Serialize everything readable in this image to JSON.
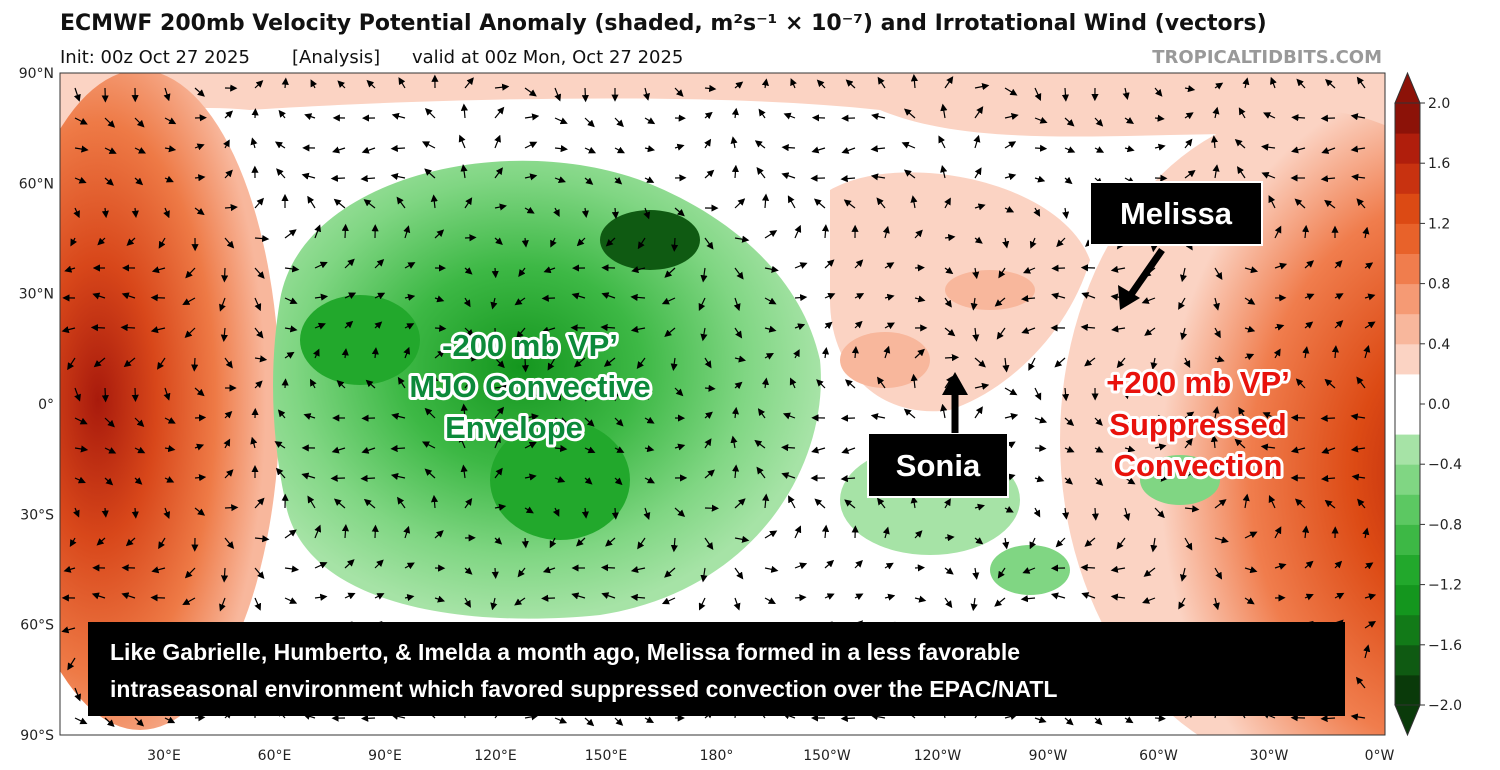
{
  "header": {
    "title": "ECMWF 200mb Velocity Potential Anomaly (shaded, m²s⁻¹ × 10⁻⁷) and Irrotational Wind (vectors)",
    "init": "Init: 00z Oct 27 2025",
    "run": "[Analysis]",
    "valid": "valid at 00z Mon, Oct 27 2025",
    "source": "TROPICALTIDBITS.COM"
  },
  "map": {
    "lat_labels": [
      "90°N",
      "60°N",
      "30°N",
      "0°",
      "30°S",
      "60°S",
      "90°S"
    ],
    "lon_labels": [
      "30°E",
      "60°E",
      "90°E",
      "120°E",
      "150°E",
      "180°",
      "150°W",
      "120°W",
      "90°W",
      "60°W",
      "30°W",
      "0°W"
    ]
  },
  "colorbar": {
    "range": [
      -2.0,
      2.0
    ],
    "ticks": [
      {
        "value": 2.0,
        "label": "2.0"
      },
      {
        "value": 1.6,
        "label": "1.6"
      },
      {
        "value": 1.2,
        "label": "1.2"
      },
      {
        "value": 0.8,
        "label": "0.8"
      },
      {
        "value": 0.4,
        "label": "0.4"
      },
      {
        "value": 0.0,
        "label": "0.0"
      },
      {
        "value": -0.4,
        "label": "−0.4"
      },
      {
        "value": -0.8,
        "label": "−0.8"
      },
      {
        "value": -1.2,
        "label": "−1.2"
      },
      {
        "value": -1.6,
        "label": "−1.6"
      },
      {
        "value": -2.0,
        "label": "−2.0"
      }
    ],
    "colors": [
      "#0a3a0a",
      "#0f5a12",
      "#127a18",
      "#14961e",
      "#22a82c",
      "#3db845",
      "#5cc862",
      "#80d683",
      "#a6e3a6",
      "#ffffff",
      "#ffffff",
      "#fbd3c3",
      "#f8b79c",
      "#f59a74",
      "#f07d4d",
      "#e8622a",
      "#dc4a14",
      "#c83210",
      "#b01e0c",
      "#8c1208"
    ]
  },
  "annotations": {
    "melissa": "Melissa",
    "sonia": "Sonia",
    "mjo": [
      "-200 mb VP’",
      "MJO Convective",
      "Envelope"
    ],
    "suppressed": [
      "+200 mb VP’",
      "Suppressed",
      "Convection"
    ],
    "caption": [
      "Like Gabrielle, Humberto, & Imelda a month ago, Melissa formed in a less favorable",
      "intraseasonal environment which favored suppressed convection over the EPAC/NATL"
    ]
  }
}
